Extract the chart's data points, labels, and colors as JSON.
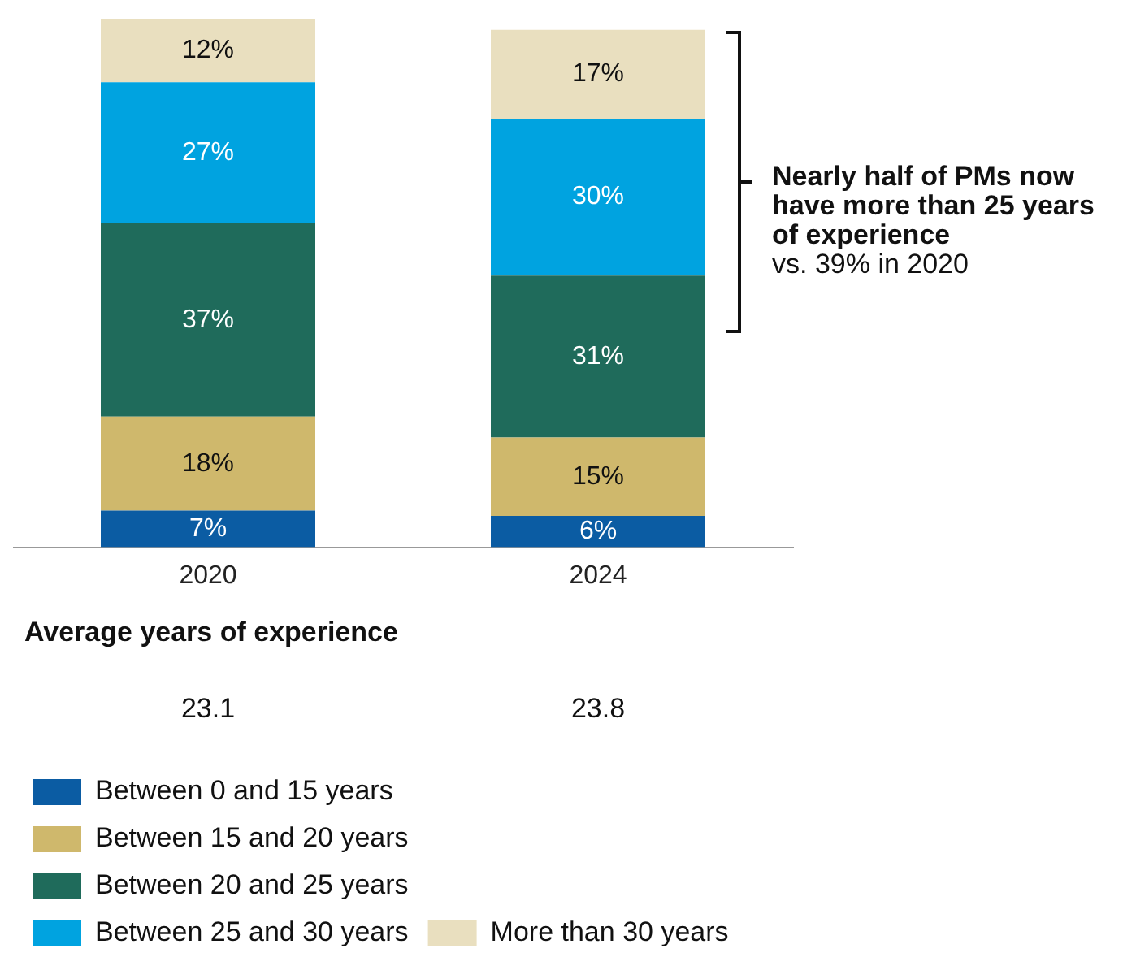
{
  "chart_data": {
    "type": "bar",
    "stacked": true,
    "legend": "bottom",
    "grid": false,
    "categories": [
      "2020",
      "2024"
    ],
    "series": [
      {
        "name": "Between 0 and 15 years",
        "color": "#0b5ca3",
        "values": [
          7,
          6
        ],
        "value_labels": [
          "7%",
          "6%"
        ]
      },
      {
        "name": "Between 15 and 20 years",
        "color": "#cfb86c",
        "values": [
          18,
          15
        ],
        "value_labels": [
          "18%",
          "15%"
        ]
      },
      {
        "name": "Between 20 and 25 years",
        "color": "#1f6b5b",
        "values": [
          37,
          31
        ],
        "value_labels": [
          "37%",
          "31%"
        ]
      },
      {
        "name": "Between 25 and 30 years",
        "color": "#00a3e0",
        "values": [
          27,
          30
        ],
        "value_labels": [
          "27%",
          "30%"
        ]
      },
      {
        "name": "More than 30 years",
        "color": "#e9dfbf",
        "values": [
          12,
          17
        ],
        "value_labels": [
          "12%",
          "17%"
        ]
      }
    ],
    "annotations": [
      "Nearly half of PMs now have more than 25 years of experience",
      "vs. 39% in 2020",
      "Average years of experience",
      "23.1",
      "23.8"
    ]
  }
}
